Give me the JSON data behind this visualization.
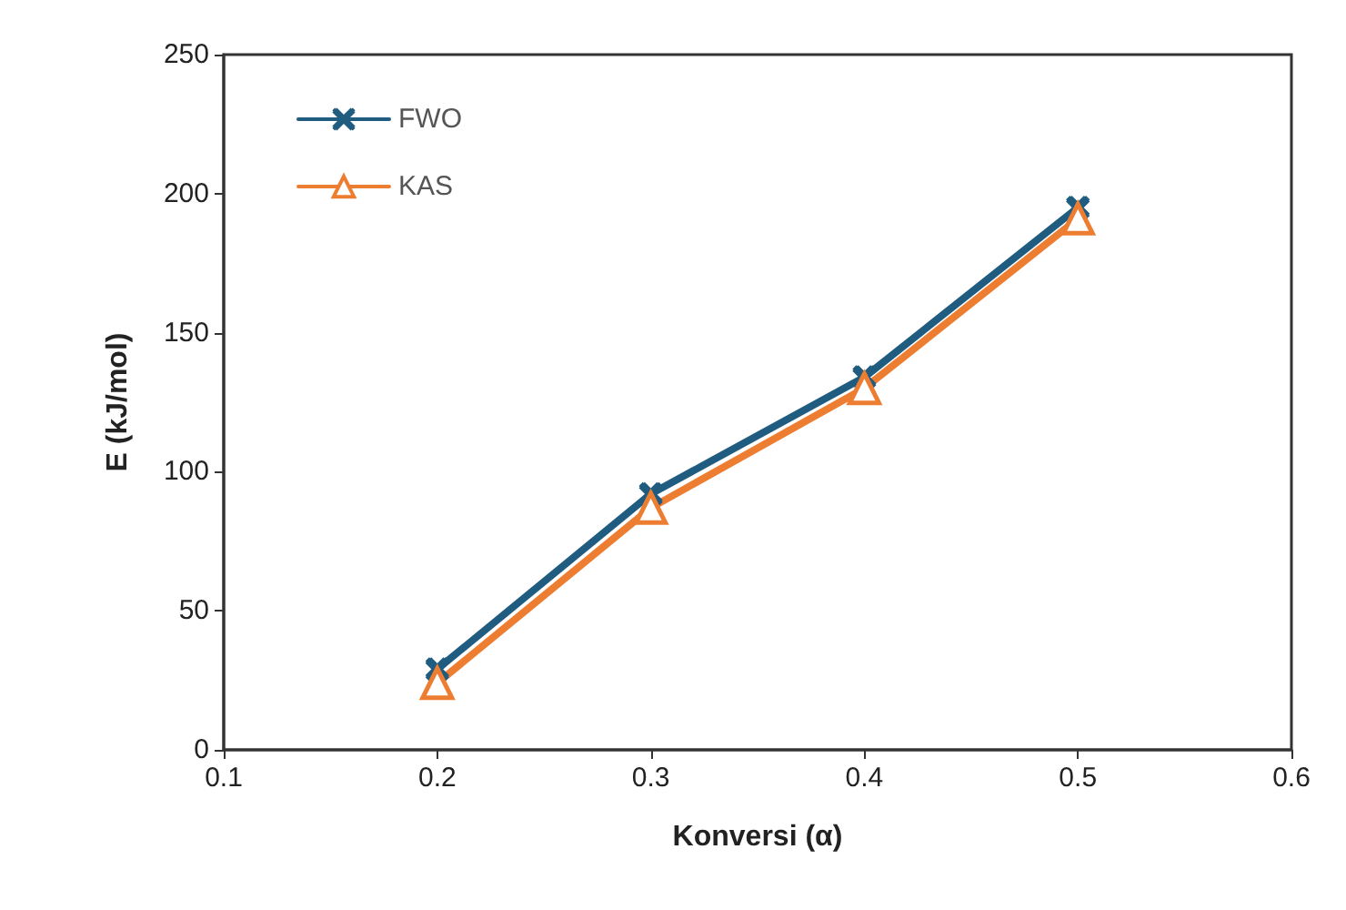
{
  "chart_data": {
    "type": "line",
    "xlabel": "Konversi (α)",
    "ylabel": "E (kJ/mol)",
    "x": [
      0.2,
      0.3,
      0.4,
      0.5
    ],
    "series": [
      {
        "name": "FWO",
        "color": "#1f5c80",
        "marker": "cross",
        "values": [
          29,
          92,
          134,
          195
        ]
      },
      {
        "name": "KAS",
        "color": "#ed7d31",
        "marker": "triangle",
        "values": [
          24,
          87,
          130,
          191
        ]
      }
    ],
    "xlim": [
      0.1,
      0.6
    ],
    "xticks": [
      0.1,
      0.2,
      0.3,
      0.4,
      0.5,
      0.6
    ],
    "ylim": [
      0,
      250
    ],
    "yticks": [
      0,
      50,
      100,
      150,
      200,
      250
    ],
    "grid": false,
    "legend": "top left",
    "line_style": "solid"
  }
}
